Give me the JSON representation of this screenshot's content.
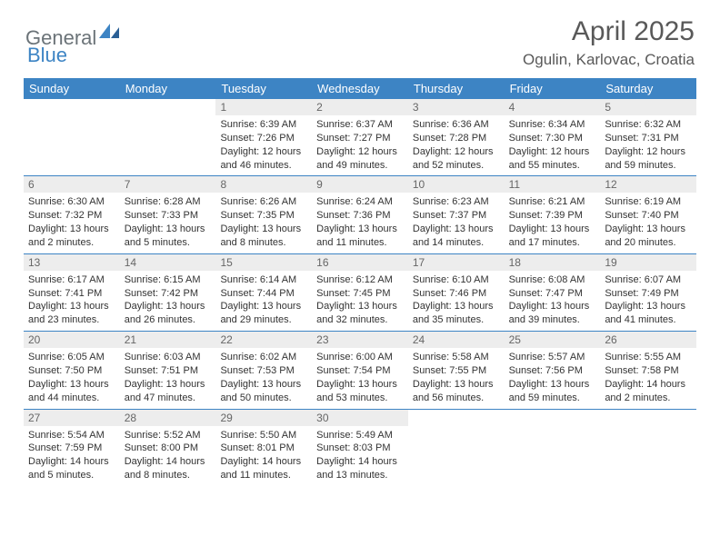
{
  "logo": {
    "part1": "General",
    "part2": "Blue"
  },
  "title": "April 2025",
  "location": "Ogulin, Karlovac, Croatia",
  "colors": {
    "header_bg": "#3d84c4",
    "daynum_bg": "#ededed",
    "rule": "#3d84c4"
  },
  "day_names": [
    "Sunday",
    "Monday",
    "Tuesday",
    "Wednesday",
    "Thursday",
    "Friday",
    "Saturday"
  ],
  "weeks": [
    [
      null,
      null,
      {
        "n": "1",
        "sunrise": "6:39 AM",
        "sunset": "7:26 PM",
        "daylight": "12 hours and 46 minutes."
      },
      {
        "n": "2",
        "sunrise": "6:37 AM",
        "sunset": "7:27 PM",
        "daylight": "12 hours and 49 minutes."
      },
      {
        "n": "3",
        "sunrise": "6:36 AM",
        "sunset": "7:28 PM",
        "daylight": "12 hours and 52 minutes."
      },
      {
        "n": "4",
        "sunrise": "6:34 AM",
        "sunset": "7:30 PM",
        "daylight": "12 hours and 55 minutes."
      },
      {
        "n": "5",
        "sunrise": "6:32 AM",
        "sunset": "7:31 PM",
        "daylight": "12 hours and 59 minutes."
      }
    ],
    [
      {
        "n": "6",
        "sunrise": "6:30 AM",
        "sunset": "7:32 PM",
        "daylight": "13 hours and 2 minutes."
      },
      {
        "n": "7",
        "sunrise": "6:28 AM",
        "sunset": "7:33 PM",
        "daylight": "13 hours and 5 minutes."
      },
      {
        "n": "8",
        "sunrise": "6:26 AM",
        "sunset": "7:35 PM",
        "daylight": "13 hours and 8 minutes."
      },
      {
        "n": "9",
        "sunrise": "6:24 AM",
        "sunset": "7:36 PM",
        "daylight": "13 hours and 11 minutes."
      },
      {
        "n": "10",
        "sunrise": "6:23 AM",
        "sunset": "7:37 PM",
        "daylight": "13 hours and 14 minutes."
      },
      {
        "n": "11",
        "sunrise": "6:21 AM",
        "sunset": "7:39 PM",
        "daylight": "13 hours and 17 minutes."
      },
      {
        "n": "12",
        "sunrise": "6:19 AM",
        "sunset": "7:40 PM",
        "daylight": "13 hours and 20 minutes."
      }
    ],
    [
      {
        "n": "13",
        "sunrise": "6:17 AM",
        "sunset": "7:41 PM",
        "daylight": "13 hours and 23 minutes."
      },
      {
        "n": "14",
        "sunrise": "6:15 AM",
        "sunset": "7:42 PM",
        "daylight": "13 hours and 26 minutes."
      },
      {
        "n": "15",
        "sunrise": "6:14 AM",
        "sunset": "7:44 PM",
        "daylight": "13 hours and 29 minutes."
      },
      {
        "n": "16",
        "sunrise": "6:12 AM",
        "sunset": "7:45 PM",
        "daylight": "13 hours and 32 minutes."
      },
      {
        "n": "17",
        "sunrise": "6:10 AM",
        "sunset": "7:46 PM",
        "daylight": "13 hours and 35 minutes."
      },
      {
        "n": "18",
        "sunrise": "6:08 AM",
        "sunset": "7:47 PM",
        "daylight": "13 hours and 39 minutes."
      },
      {
        "n": "19",
        "sunrise": "6:07 AM",
        "sunset": "7:49 PM",
        "daylight": "13 hours and 41 minutes."
      }
    ],
    [
      {
        "n": "20",
        "sunrise": "6:05 AM",
        "sunset": "7:50 PM",
        "daylight": "13 hours and 44 minutes."
      },
      {
        "n": "21",
        "sunrise": "6:03 AM",
        "sunset": "7:51 PM",
        "daylight": "13 hours and 47 minutes."
      },
      {
        "n": "22",
        "sunrise": "6:02 AM",
        "sunset": "7:53 PM",
        "daylight": "13 hours and 50 minutes."
      },
      {
        "n": "23",
        "sunrise": "6:00 AM",
        "sunset": "7:54 PM",
        "daylight": "13 hours and 53 minutes."
      },
      {
        "n": "24",
        "sunrise": "5:58 AM",
        "sunset": "7:55 PM",
        "daylight": "13 hours and 56 minutes."
      },
      {
        "n": "25",
        "sunrise": "5:57 AM",
        "sunset": "7:56 PM",
        "daylight": "13 hours and 59 minutes."
      },
      {
        "n": "26",
        "sunrise": "5:55 AM",
        "sunset": "7:58 PM",
        "daylight": "14 hours and 2 minutes."
      }
    ],
    [
      {
        "n": "27",
        "sunrise": "5:54 AM",
        "sunset": "7:59 PM",
        "daylight": "14 hours and 5 minutes."
      },
      {
        "n": "28",
        "sunrise": "5:52 AM",
        "sunset": "8:00 PM",
        "daylight": "14 hours and 8 minutes."
      },
      {
        "n": "29",
        "sunrise": "5:50 AM",
        "sunset": "8:01 PM",
        "daylight": "14 hours and 11 minutes."
      },
      {
        "n": "30",
        "sunrise": "5:49 AM",
        "sunset": "8:03 PM",
        "daylight": "14 hours and 13 minutes."
      },
      null,
      null,
      null
    ]
  ]
}
